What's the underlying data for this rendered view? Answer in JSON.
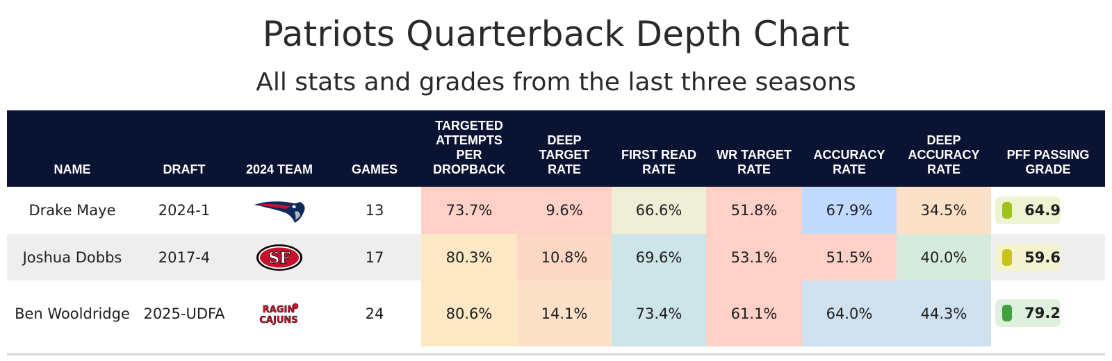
{
  "title": "Patriots Quarterback Depth Chart",
  "subtitle": "All stats and grades from the last three seasons",
  "chart_data": {
    "type": "table",
    "columns": [
      "NAME",
      "DRAFT",
      "2024 TEAM",
      "GAMES",
      "TARGETED\nATTEMPTS\nPER\nDROPBACK",
      "DEEP\nTARGET\nRATE",
      "FIRST READ\nRATE",
      "WR TARGET\nRATE",
      "ACCURACY\nRATE",
      "DEEP\nACCURACY\nRATE",
      "PFF PASSING\nGRADE"
    ],
    "rows": [
      {
        "name": "Drake Maye",
        "draft": "2024-1",
        "team_logo": "new-england-patriots-logo",
        "games": "13",
        "stats": [
          "73.7%",
          "9.6%",
          "66.6%",
          "51.8%",
          "67.9%",
          "34.5%"
        ],
        "stat_colors": [
          "#fdd0c8",
          "#fdd0c8",
          "#efeed7",
          "#fdd0c8",
          "#c2daff",
          "#fde0c8"
        ],
        "grade": "64.9",
        "grade_color": "#9fc21f",
        "grade_bg": "#eef4d2"
      },
      {
        "name": "Joshua Dobbs",
        "draft": "2017-4",
        "team_logo": "san-francisco-49ers-logo",
        "games": "17",
        "stats": [
          "80.3%",
          "10.8%",
          "69.6%",
          "53.1%",
          "51.5%",
          "40.0%"
        ],
        "stat_colors": [
          "#fde8c6",
          "#fdd7c6",
          "#cde5e8",
          "#fdd0c8",
          "#fdd0c8",
          "#d7ebdc"
        ],
        "grade": "59.6",
        "grade_color": "#c8c417",
        "grade_bg": "#f3f3cf"
      },
      {
        "name": "Ben Wooldridge",
        "draft": "2025-UDFA",
        "team_logo": "ragin-cajuns-logo",
        "games": "24",
        "stats": [
          "80.6%",
          "14.1%",
          "73.4%",
          "61.1%",
          "64.0%",
          "44.3%"
        ],
        "stat_colors": [
          "#fde8c6",
          "#fde0c8",
          "#cde5e8",
          "#fdd0c8",
          "#cfe0ee",
          "#cfe0ee"
        ],
        "grade": "79.2",
        "grade_color": "#3fa23f",
        "grade_bg": "#dff0df"
      }
    ],
    "row_backgrounds": [
      "#ffffff",
      "#eeeeee",
      "#ffffff"
    ],
    "header_bg": "#0b1333"
  }
}
